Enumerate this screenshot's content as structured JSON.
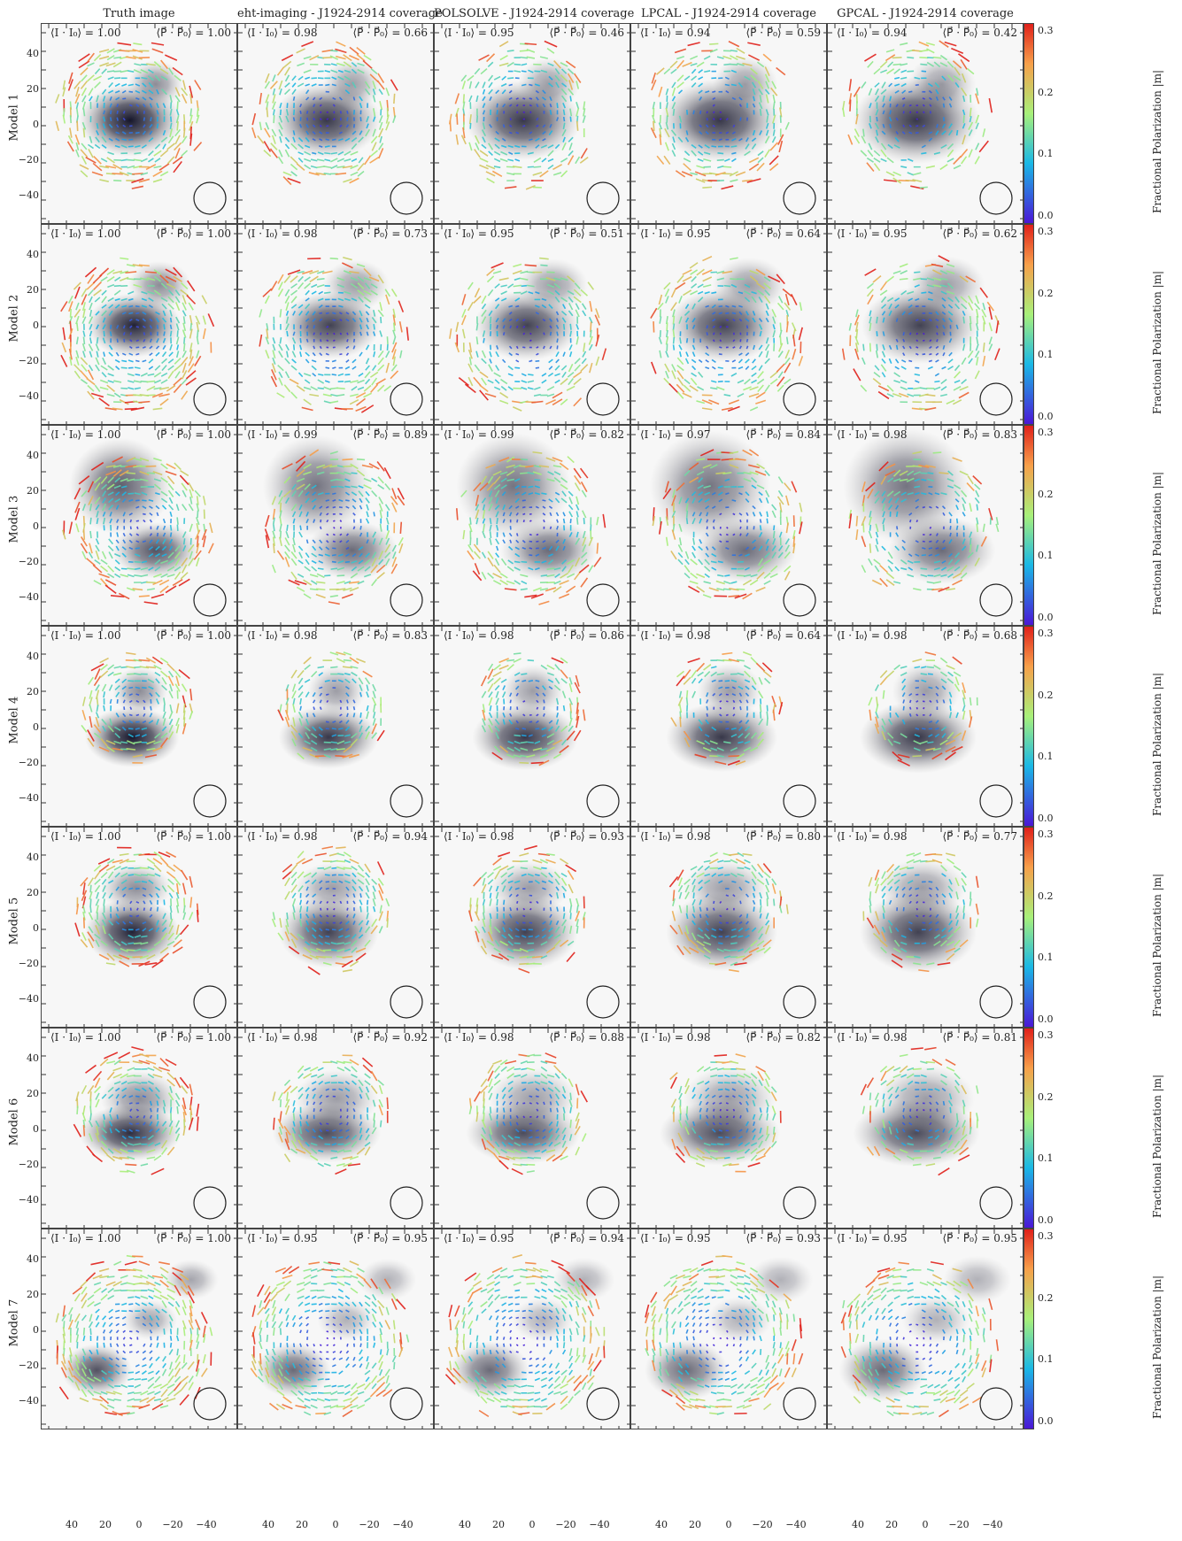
{
  "figure": {
    "columns": [
      "Truth image",
      "eht-imaging - J1924-2914 coverage",
      "POLSOLVE - J1924-2914 coverage",
      "LPCAL - J1924-2914 coverage",
      "GPCAL - J1924-2914 coverage"
    ],
    "rows": [
      {
        "label": "Model 1",
        "ii": [
          "1.00",
          "0.98",
          "0.95",
          "0.94",
          "0.94"
        ],
        "pp": [
          "1.00",
          "0.66",
          "0.46",
          "0.59",
          "0.42"
        ]
      },
      {
        "label": "Model 2",
        "ii": [
          "1.00",
          "0.98",
          "0.95",
          "0.95",
          "0.95"
        ],
        "pp": [
          "1.00",
          "0.73",
          "0.51",
          "0.64",
          "0.62"
        ]
      },
      {
        "label": "Model 3",
        "ii": [
          "1.00",
          "0.99",
          "0.99",
          "0.97",
          "0.98"
        ],
        "pp": [
          "1.00",
          "0.89",
          "0.82",
          "0.84",
          "0.83"
        ]
      },
      {
        "label": "Model 4",
        "ii": [
          "1.00",
          "0.98",
          "0.98",
          "0.98",
          "0.98"
        ],
        "pp": [
          "1.00",
          "0.83",
          "0.86",
          "0.64",
          "0.68"
        ]
      },
      {
        "label": "Model 5",
        "ii": [
          "1.00",
          "0.98",
          "0.98",
          "0.98",
          "0.98"
        ],
        "pp": [
          "1.00",
          "0.94",
          "0.93",
          "0.80",
          "0.77"
        ]
      },
      {
        "label": "Model 6",
        "ii": [
          "1.00",
          "0.98",
          "0.98",
          "0.98",
          "0.98"
        ],
        "pp": [
          "1.00",
          "0.92",
          "0.88",
          "0.82",
          "0.81"
        ]
      },
      {
        "label": "Model 7",
        "ii": [
          "1.00",
          "0.95",
          "0.95",
          "0.95",
          "0.95"
        ],
        "pp": [
          "1.00",
          "0.95",
          "0.94",
          "0.93",
          "0.95"
        ]
      }
    ],
    "corr_prefix_i": "⟨I · I₀⟩ = ",
    "corr_prefix_p": "⟨P⃗ · P⃗₀⟩ = ",
    "y_ticks": [
      "40",
      "20",
      "0",
      "−20",
      "−40"
    ],
    "x_ticks": [
      "40",
      "20",
      "0",
      "−20",
      "−40"
    ],
    "colorbar": {
      "label": "Fractional Polarization |m|",
      "ticks": [
        "0.3",
        "0.2",
        "0.1",
        "0.0"
      ],
      "colors": {
        "top": "#e0201a",
        "upper": "#f7a04a",
        "mid": "#a8f07a",
        "lower": "#1ab8e6",
        "bottom": "#4a17d6"
      }
    }
  }
}
